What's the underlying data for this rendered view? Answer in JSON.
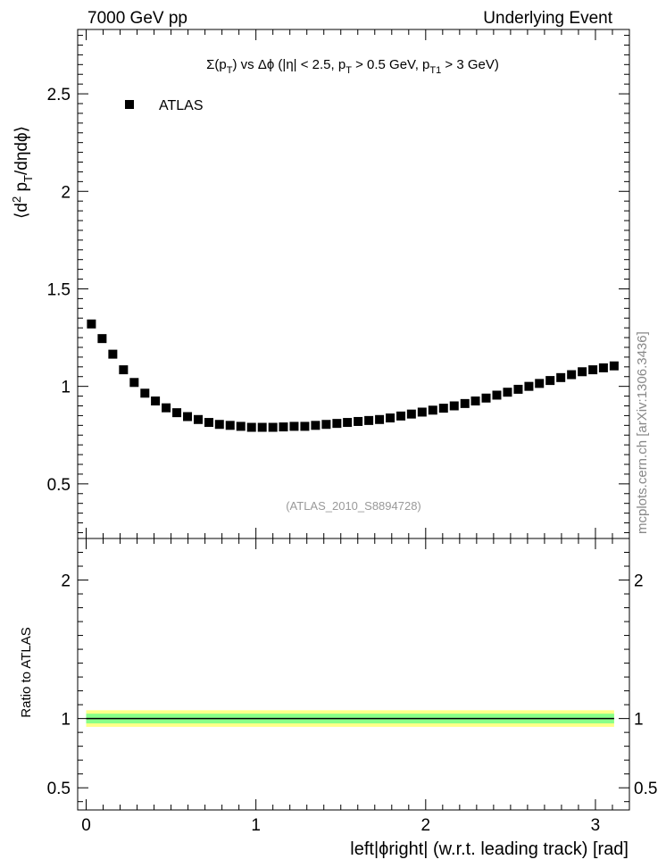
{
  "header": {
    "left": "7000 GeV pp",
    "right": "Underlying Event"
  },
  "side_label": "mcplots.cern.ch [arXiv:1306.3436]",
  "chart_data": [
    {
      "type": "scatter",
      "title_parts": {
        "s1": "Σ(p",
        "s2": "T",
        "s3": ") vs Δϕ (|η| < 2.5, p",
        "s4": "T",
        "s5": " > 0.5 GeV, p",
        "s6": "T1",
        "s7": " > 3 GeV)"
      },
      "ylabel_parts": {
        "a": "⟨d",
        "b": "2",
        "c": " p",
        "d": "T",
        "e": "/dηdϕ⟩"
      },
      "legend": "ATLAS",
      "watermark": "(ATLAS_2010_S8894728)",
      "xlim": [
        -0.05,
        3.2
      ],
      "ylim": [
        0.22,
        2.83
      ],
      "yticks": [
        0.5,
        1,
        1.5,
        2,
        2.5
      ],
      "series": [
        {
          "name": "ATLAS",
          "x": [
            0.031,
            0.094,
            0.157,
            0.22,
            0.283,
            0.346,
            0.408,
            0.471,
            0.534,
            0.597,
            0.66,
            0.723,
            0.785,
            0.848,
            0.911,
            0.974,
            1.037,
            1.1,
            1.162,
            1.225,
            1.288,
            1.351,
            1.414,
            1.477,
            1.539,
            1.602,
            1.665,
            1.728,
            1.791,
            1.854,
            1.916,
            1.979,
            2.042,
            2.105,
            2.168,
            2.231,
            2.293,
            2.356,
            2.419,
            2.482,
            2.545,
            2.608,
            2.67,
            2.733,
            2.796,
            2.859,
            2.922,
            2.985,
            3.047,
            3.11
          ],
          "values": [
            1.32,
            1.245,
            1.165,
            1.085,
            1.02,
            0.965,
            0.925,
            0.89,
            0.865,
            0.845,
            0.83,
            0.815,
            0.805,
            0.8,
            0.795,
            0.79,
            0.79,
            0.79,
            0.792,
            0.795,
            0.795,
            0.8,
            0.805,
            0.81,
            0.815,
            0.82,
            0.825,
            0.83,
            0.838,
            0.848,
            0.858,
            0.868,
            0.878,
            0.888,
            0.9,
            0.912,
            0.925,
            0.94,
            0.955,
            0.97,
            0.985,
            1.0,
            1.015,
            1.03,
            1.045,
            1.06,
            1.075,
            1.085,
            1.095,
            1.105
          ]
        }
      ]
    },
    {
      "type": "line",
      "ylabel": "Ratio to ATLAS",
      "xlabel": "left|ϕright| (w.r.t. leading track) [rad]",
      "xlim": [
        -0.05,
        3.2
      ],
      "ylim": [
        0.34,
        2.3
      ],
      "xticks": [
        0,
        1,
        2,
        3
      ],
      "yticks": [
        0.5,
        1,
        2
      ],
      "reference": 1.0,
      "bands": [
        {
          "lo": 0.94,
          "hi": 1.06,
          "color": "#ffff88"
        },
        {
          "lo": 0.965,
          "hi": 1.035,
          "color": "#88ff88"
        }
      ],
      "colors": {
        "marker": "#000000",
        "line": "#000000"
      }
    }
  ]
}
